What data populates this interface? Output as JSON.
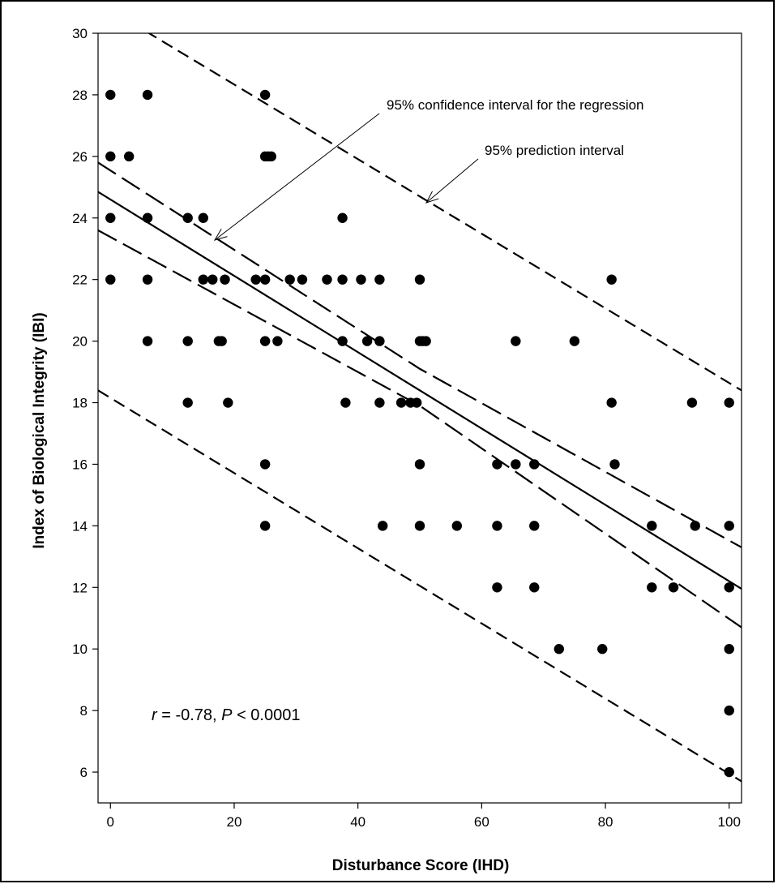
{
  "chart_data": {
    "type": "scatter",
    "xlabel": "Disturbance Score (IHD)",
    "ylabel": "Index of Biological Integrity (IBI)",
    "xlim": [
      -2,
      102
    ],
    "ylim": [
      5,
      30
    ],
    "xticks": [
      0,
      20,
      40,
      60,
      80,
      100
    ],
    "yticks": [
      6,
      8,
      10,
      12,
      14,
      16,
      18,
      20,
      22,
      24,
      26,
      28,
      30
    ],
    "grid": false,
    "points": [
      [
        0,
        28
      ],
      [
        0,
        26
      ],
      [
        0,
        24
      ],
      [
        0,
        22
      ],
      [
        3,
        26
      ],
      [
        6,
        28
      ],
      [
        6,
        24
      ],
      [
        6,
        22
      ],
      [
        6,
        20
      ],
      [
        12.5,
        24
      ],
      [
        12.5,
        20
      ],
      [
        12.5,
        18
      ],
      [
        15,
        24
      ],
      [
        15,
        22
      ],
      [
        16.5,
        22
      ],
      [
        17.5,
        20
      ],
      [
        18,
        20
      ],
      [
        18.5,
        22
      ],
      [
        19,
        18
      ],
      [
        23.5,
        22
      ],
      [
        25,
        28
      ],
      [
        25,
        26
      ],
      [
        25.5,
        26
      ],
      [
        26,
        26
      ],
      [
        25,
        22
      ],
      [
        25,
        20
      ],
      [
        25,
        16
      ],
      [
        25,
        14
      ],
      [
        27,
        20
      ],
      [
        29,
        22
      ],
      [
        31,
        22
      ],
      [
        35,
        22
      ],
      [
        37.5,
        24
      ],
      [
        37.5,
        22
      ],
      [
        37.5,
        20
      ],
      [
        38,
        18
      ],
      [
        40.5,
        22
      ],
      [
        41.5,
        20
      ],
      [
        43.5,
        22
      ],
      [
        43.5,
        20
      ],
      [
        43.5,
        18
      ],
      [
        44,
        14
      ],
      [
        47,
        18
      ],
      [
        48.5,
        18
      ],
      [
        49.5,
        18
      ],
      [
        50,
        22
      ],
      [
        50,
        20
      ],
      [
        50.5,
        20
      ],
      [
        51,
        20
      ],
      [
        50,
        16
      ],
      [
        50,
        14
      ],
      [
        56,
        14
      ],
      [
        62.5,
        16
      ],
      [
        62.5,
        14
      ],
      [
        62.5,
        12
      ],
      [
        65.5,
        20
      ],
      [
        65.5,
        16
      ],
      [
        68.5,
        16
      ],
      [
        68.5,
        14
      ],
      [
        68.5,
        12
      ],
      [
        72.5,
        10
      ],
      [
        75,
        20
      ],
      [
        79.5,
        10
      ],
      [
        81,
        22
      ],
      [
        81,
        18
      ],
      [
        81.5,
        16
      ],
      [
        87.5,
        14
      ],
      [
        87.5,
        12
      ],
      [
        91,
        12
      ],
      [
        94,
        18
      ],
      [
        94.5,
        14
      ],
      [
        100,
        18
      ],
      [
        100,
        14
      ],
      [
        100,
        12
      ],
      [
        100,
        10
      ],
      [
        100,
        8
      ],
      [
        100,
        6
      ]
    ],
    "regression": {
      "intercept": 24.6,
      "slope": -0.124
    },
    "confidence_interval_upper": [
      [
        -2,
        25.8
      ],
      [
        50,
        19.1
      ],
      [
        102,
        13.3
      ]
    ],
    "confidence_interval_lower": [
      [
        -2,
        23.6
      ],
      [
        50,
        17.9
      ],
      [
        102,
        10.7
      ]
    ],
    "prediction_interval_upper": [
      [
        -2,
        31.0
      ],
      [
        102,
        18.4
      ]
    ],
    "prediction_interval_lower": [
      [
        -2,
        18.4
      ],
      [
        102,
        5.7
      ]
    ],
    "annotations": [
      {
        "text": "95% confidence interval for the regression"
      },
      {
        "text": "95% prediction interval"
      }
    ],
    "stat_text": {
      "r_symbol": "r",
      "r_value": " = -0.78, ",
      "p_symbol": "P",
      "p_value": " < 0.0001"
    }
  }
}
